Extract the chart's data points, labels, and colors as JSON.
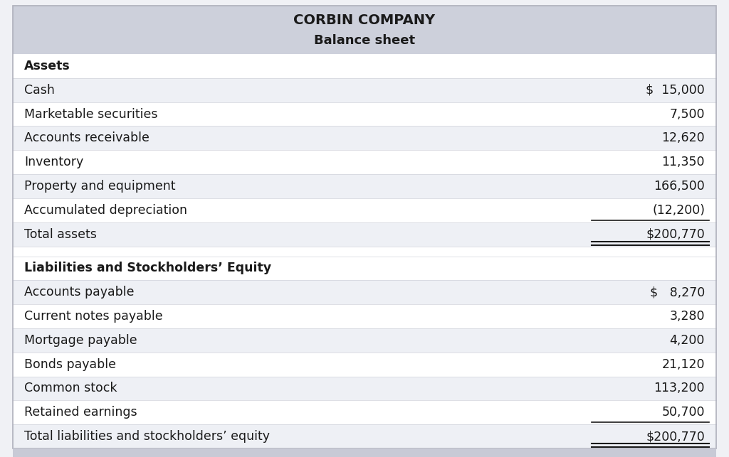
{
  "title_line1": "CORBIN COMPANY",
  "title_line2": "Balance sheet",
  "header_bg": "#cdd0db",
  "row_bg_alt": "#eef0f5",
  "row_bg_white": "#ffffff",
  "outer_bg": "#f0f1f5",
  "bottom_bar_color": "#c8cad6",
  "border_color": "#aeb0bb",
  "text_color": "#1a1a1a",
  "rows": [
    {
      "label": "Assets",
      "value": "",
      "bold": true,
      "bg": "#ffffff",
      "separator_after": false
    },
    {
      "label": "Cash",
      "value": "$  15,000",
      "bold": false,
      "bg": "#eef0f5",
      "separator_after": false
    },
    {
      "label": "Marketable securities",
      "value": "7,500",
      "bold": false,
      "bg": "#ffffff",
      "separator_after": false
    },
    {
      "label": "Accounts receivable",
      "value": "12,620",
      "bold": false,
      "bg": "#eef0f5",
      "separator_after": false
    },
    {
      "label": "Inventory",
      "value": "11,350",
      "bold": false,
      "bg": "#ffffff",
      "separator_after": false
    },
    {
      "label": "Property and equipment",
      "value": "166,500",
      "bold": false,
      "bg": "#eef0f5",
      "separator_after": false
    },
    {
      "label": "Accumulated depreciation",
      "value": "(12,200)",
      "bold": false,
      "bg": "#ffffff",
      "underline_value": true,
      "separator_after": false
    },
    {
      "label": "Total assets",
      "value": "$200,770",
      "bold": false,
      "bg": "#eef0f5",
      "double_underline": true,
      "separator_after": true
    },
    {
      "label": "Liabilities and Stockholders’ Equity",
      "value": "",
      "bold": true,
      "bg": "#ffffff",
      "separator_after": false
    },
    {
      "label": "Accounts payable",
      "value": "$   8,270",
      "bold": false,
      "bg": "#eef0f5",
      "separator_after": false
    },
    {
      "label": "Current notes payable",
      "value": "3,280",
      "bold": false,
      "bg": "#ffffff",
      "separator_after": false
    },
    {
      "label": "Mortgage payable",
      "value": "4,200",
      "bold": false,
      "bg": "#eef0f5",
      "separator_after": false
    },
    {
      "label": "Bonds payable",
      "value": "21,120",
      "bold": false,
      "bg": "#ffffff",
      "separator_after": false
    },
    {
      "label": "Common stock",
      "value": "113,200",
      "bold": false,
      "bg": "#eef0f5",
      "separator_after": false
    },
    {
      "label": "Retained earnings",
      "value": "50,700",
      "bold": false,
      "bg": "#ffffff",
      "underline_value": true,
      "separator_after": false
    },
    {
      "label": "Total liabilities and stockholders’ equity",
      "value": "$200,770",
      "bold": false,
      "bg": "#eef0f5",
      "double_underline": true,
      "separator_after": false
    }
  ],
  "figsize": [
    10.24,
    6.43
  ],
  "dpi": 100
}
